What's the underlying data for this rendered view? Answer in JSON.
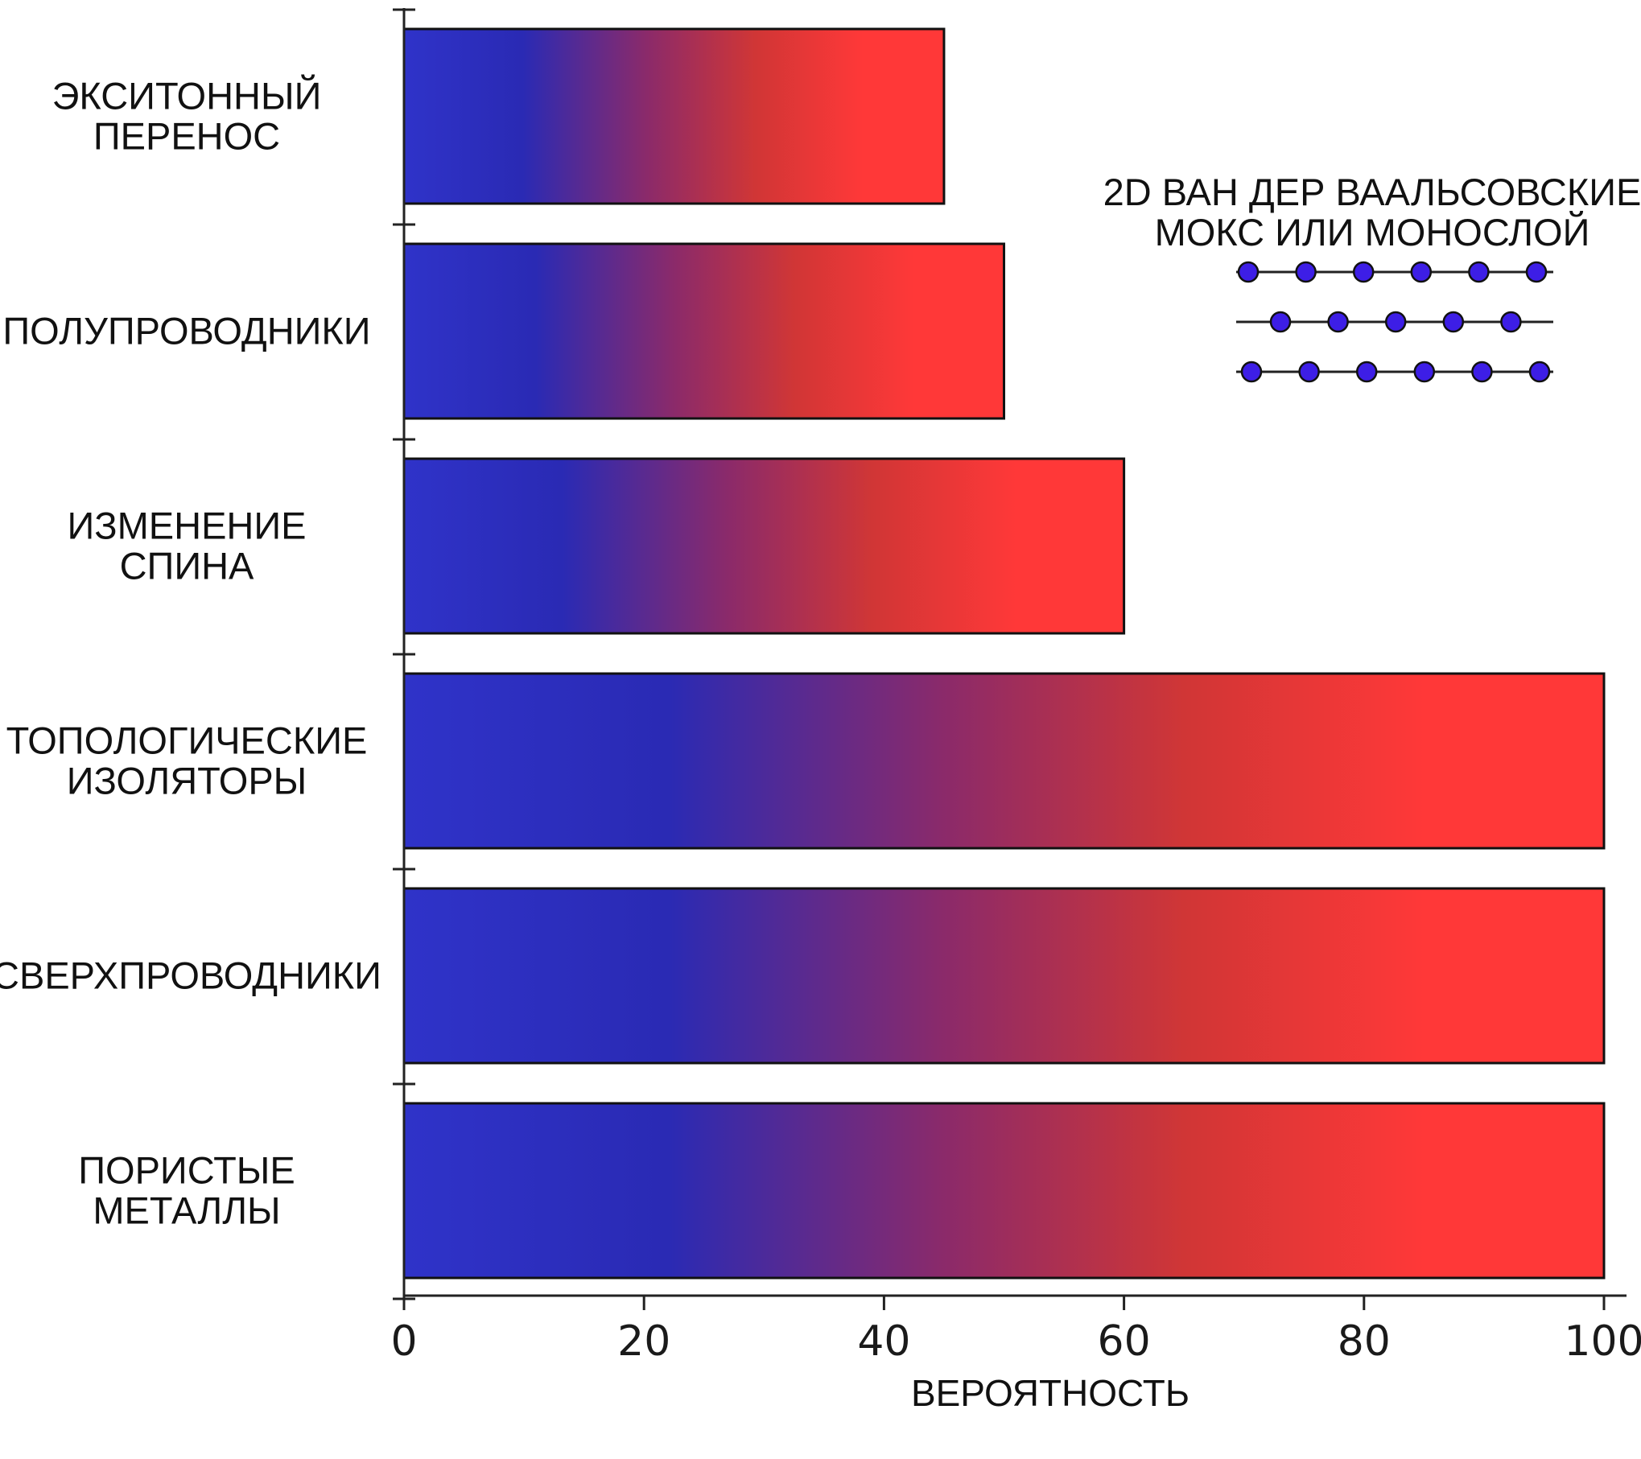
{
  "chart_data": {
    "type": "bar",
    "orientation": "horizontal",
    "categories": [
      [
        "ЭКСИТОННЫЙ",
        "ПЕРЕНОС"
      ],
      [
        "ПОЛУПРОВОДНИКИ"
      ],
      [
        "ИЗМЕНЕНИЕ",
        "СПИНА"
      ],
      [
        "ТОПОЛОГИЧЕСКИЕ",
        "ИЗОЛЯТОРЫ"
      ],
      [
        "СВЕРХПРОВОДНИКИ"
      ],
      [
        "ПОРИСТЫЕ",
        "МЕТАЛЛЫ"
      ]
    ],
    "values": [
      45,
      50,
      60,
      100,
      100,
      100
    ],
    "xlabel": "ВЕРОЯТНОСТЬ",
    "ylabel": "",
    "xlim": [
      0,
      100
    ],
    "xticks": [
      "0",
      "20",
      "40",
      "60",
      "80",
      "100"
    ],
    "grid": false,
    "bar_gradient": [
      "#2f33c9",
      "#2a2ab4",
      "#8b2a6a",
      "#d03636",
      "#ff3838"
    ],
    "inset": {
      "title_lines": [
        "2D ВАН ДЕР ВААЛЬСОВСКИЕ",
        "МОКС ИЛИ МОНОСЛОЙ"
      ],
      "layers": 3,
      "atom_color": "#3d1ee6"
    }
  }
}
